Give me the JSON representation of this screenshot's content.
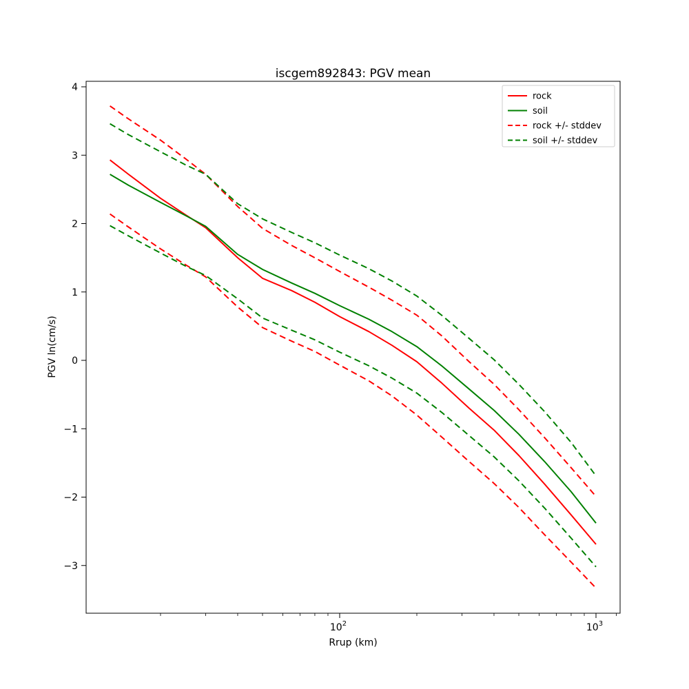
{
  "figure": {
    "title": "iscgem892843: PGV mean"
  },
  "chart_data": {
    "type": "line",
    "title": "iscgem892843: PGV mean",
    "xlabel": "Rrup (km)",
    "ylabel": "PGV ln(cm/s)",
    "x_scale": "log",
    "xlim": [
      10.2,
      1240
    ],
    "ylim": [
      -3.7,
      4.1
    ],
    "grid": false,
    "legend_position": "upper right",
    "x_km": [
      12.7,
      15,
      20,
      25,
      30,
      40,
      50,
      65,
      80,
      100,
      130,
      160,
      200,
      250,
      320,
      400,
      500,
      630,
      800,
      1000
    ],
    "series": [
      {
        "name": "rock",
        "color": "#ff0000",
        "linestyle": "solid",
        "values": [
          2.93,
          2.72,
          2.37,
          2.13,
          1.94,
          1.5,
          1.2,
          1.02,
          0.85,
          0.64,
          0.42,
          0.22,
          -0.02,
          -0.33,
          -0.7,
          -1.02,
          -1.39,
          -1.81,
          -2.26,
          -2.69
        ]
      },
      {
        "name": "soil",
        "color": "#008000",
        "linestyle": "solid",
        "values": [
          2.72,
          2.56,
          2.31,
          2.12,
          1.96,
          1.55,
          1.33,
          1.13,
          0.98,
          0.8,
          0.6,
          0.42,
          0.2,
          -0.08,
          -0.42,
          -0.73,
          -1.08,
          -1.48,
          -1.92,
          -2.38
        ]
      },
      {
        "name": "rock + stddev",
        "color": "#ff0000",
        "linestyle": "dashed",
        "values": [
          3.72,
          3.53,
          3.22,
          2.95,
          2.72,
          2.25,
          1.93,
          1.68,
          1.5,
          1.3,
          1.07,
          0.88,
          0.66,
          0.36,
          -0.02,
          -0.35,
          -0.72,
          -1.13,
          -1.57,
          -1.99
        ]
      },
      {
        "name": "rock - stddev",
        "color": "#ff0000",
        "linestyle": "dashed",
        "values": [
          2.14,
          1.95,
          1.63,
          1.4,
          1.22,
          0.78,
          0.48,
          0.28,
          0.13,
          -0.07,
          -0.3,
          -0.52,
          -0.8,
          -1.12,
          -1.48,
          -1.8,
          -2.15,
          -2.55,
          -2.95,
          -3.33
        ]
      },
      {
        "name": "soil + stddev",
        "color": "#008000",
        "linestyle": "dashed",
        "values": [
          3.46,
          3.3,
          3.05,
          2.86,
          2.72,
          2.29,
          2.07,
          1.87,
          1.72,
          1.54,
          1.34,
          1.16,
          0.94,
          0.66,
          0.32,
          0.01,
          -0.35,
          -0.75,
          -1.2,
          -1.69
        ]
      },
      {
        "name": "soil - stddev",
        "color": "#008000",
        "linestyle": "dashed",
        "values": [
          1.97,
          1.82,
          1.57,
          1.38,
          1.24,
          0.9,
          0.62,
          0.44,
          0.3,
          0.12,
          -0.08,
          -0.26,
          -0.48,
          -0.76,
          -1.1,
          -1.41,
          -1.76,
          -2.16,
          -2.6,
          -3.02
        ]
      }
    ],
    "yticks": [
      {
        "value": 4,
        "label": "4"
      },
      {
        "value": 3,
        "label": "3"
      },
      {
        "value": 2,
        "label": "2"
      },
      {
        "value": 1,
        "label": "1"
      },
      {
        "value": 0,
        "label": "0"
      },
      {
        "value": -1,
        "label": "−1"
      },
      {
        "value": -2,
        "label": "−2"
      },
      {
        "value": -3,
        "label": "−3"
      }
    ],
    "xticks_major": [
      {
        "km": 100,
        "label_base": "10",
        "label_exp": "2"
      },
      {
        "km": 1000,
        "label_base": "10",
        "label_exp": "3"
      }
    ],
    "xticks_minor_km": [
      20,
      30,
      40,
      50,
      60,
      70,
      80,
      90,
      200,
      300,
      400,
      500,
      600,
      700,
      800,
      900,
      1200
    ]
  },
  "legend": {
    "items": [
      {
        "label": "rock",
        "color": "#ff0000",
        "dashed": false
      },
      {
        "label": "soil",
        "color": "#008000",
        "dashed": false
      },
      {
        "label": "rock +/- stddev",
        "color": "#ff0000",
        "dashed": true
      },
      {
        "label": "soil +/- stddev",
        "color": "#008000",
        "dashed": true
      }
    ]
  }
}
